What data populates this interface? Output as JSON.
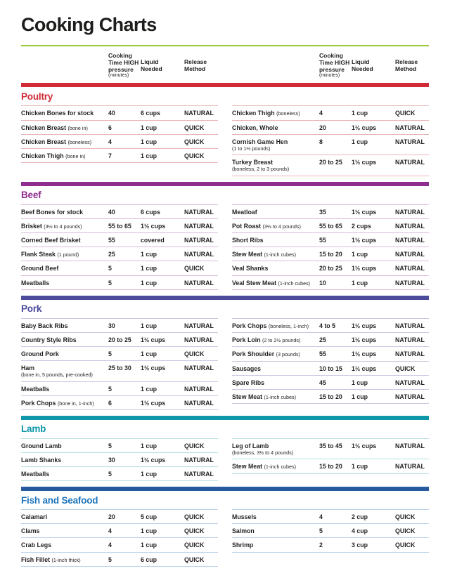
{
  "page": {
    "title": "Cooking Charts"
  },
  "headers": {
    "time": "Cooking Time HIGH pressure",
    "time_note": "(minutes)",
    "liquid": "Liquid Needed",
    "release": "Release Method"
  },
  "colors": {
    "title_rule_green": "#9aca3b",
    "text": "#231f20"
  },
  "sections": [
    {
      "name": "Poultry",
      "heading_color": "#cf2a36",
      "bar_color": "#cf2a36",
      "line_color": "#eab6ba",
      "left_rows": [
        {
          "name": "Chicken Bones for stock",
          "time": "40",
          "liquid": "6 cups",
          "release": "NATURAL"
        },
        {
          "name": "Chicken Breast",
          "sub": "(bone in)",
          "time": "6",
          "liquid": "1 cup",
          "release": "QUICK"
        },
        {
          "name": "Chicken Breast",
          "sub": "(boneless)",
          "time": "4",
          "liquid": "1 cup",
          "release": "QUICK"
        },
        {
          "name": "Chicken Thigh",
          "sub": "(bone in)",
          "time": "7",
          "liquid": "1 cup",
          "release": "QUICK"
        }
      ],
      "right_rows": [
        {
          "name": "Chicken Thigh",
          "sub": "(boneless)",
          "time": "4",
          "liquid": "1 cup",
          "release": "QUICK"
        },
        {
          "name": "Chicken, Whole",
          "time": "20",
          "liquid": "1½ cups",
          "release": "NATURAL"
        },
        {
          "name": "Cornish Game Hen",
          "sub": "(1 to 1½ pounds)",
          "sub_block": true,
          "time": "8",
          "liquid": "1 cup",
          "release": "NATURAL"
        },
        {
          "name": "Turkey Breast",
          "sub": "(boneless, 2 to 3 pounds)",
          "sub_block": true,
          "time": "20 to 25",
          "liquid": "1½ cups",
          "release": "NATURAL"
        }
      ]
    },
    {
      "name": "Beef",
      "heading_color": "#8e2c8f",
      "bar_color": "#8e2c8f",
      "line_color": "#ddb8dc",
      "left_rows": [
        {
          "name": "Beef Bones for stock",
          "time": "40",
          "liquid": "6 cups",
          "release": "NATURAL"
        },
        {
          "name": "Brisket",
          "sub": "(3½ to 4 pounds)",
          "time": "55 to 65",
          "liquid": "1½ cups",
          "release": "NATURAL"
        },
        {
          "name": "Corned Beef Brisket",
          "time": "55",
          "liquid": "covered",
          "release": "NATURAL"
        },
        {
          "name": "Flank Steak",
          "sub": "(1 pound)",
          "time": "25",
          "liquid": "1 cup",
          "release": "NATURAL"
        },
        {
          "name": "Ground Beef",
          "time": "5",
          "liquid": "1 cup",
          "release": "QUICK"
        },
        {
          "name": "Meatballs",
          "time": "5",
          "liquid": "1 cup",
          "release": "NATURAL"
        }
      ],
      "right_rows": [
        {
          "name": "Meatloaf",
          "time": "35",
          "liquid": "1½ cups",
          "release": "NATURAL"
        },
        {
          "name": "Pot Roast",
          "sub": "(3½ to 4 pounds)",
          "time": "55 to 65",
          "liquid": "2 cups",
          "release": "NATURAL"
        },
        {
          "name": "Short Ribs",
          "time": "55",
          "liquid": "1½ cups",
          "release": "NATURAL"
        },
        {
          "name": "Stew Meat",
          "sub": "(1-inch cubes)",
          "time": "15 to 20",
          "liquid": "1 cup",
          "release": "NATURAL"
        },
        {
          "name": "Veal Shanks",
          "time": "20 to 25",
          "liquid": "1½ cups",
          "release": "NATURAL"
        },
        {
          "name": "Veal Stew Meat",
          "sub": "(1-inch cubes)",
          "time": "10",
          "liquid": "1 cup",
          "release": "NATURAL"
        }
      ]
    },
    {
      "name": "Pork",
      "heading_color": "#4b4a9b",
      "bar_color": "#4b4a9b",
      "line_color": "#c9c8e2",
      "left_rows": [
        {
          "name": "Baby Back Ribs",
          "time": "30",
          "liquid": "1 cup",
          "release": "NATURAL"
        },
        {
          "name": "Country Style Ribs",
          "time": "20 to 25",
          "liquid": "1½ cups",
          "release": "NATURAL"
        },
        {
          "name": "Ground Pork",
          "time": "5",
          "liquid": "1 cup",
          "release": "QUICK"
        },
        {
          "name": "Ham",
          "sub": "(bone in, 5 pounds, pre-cooked)",
          "sub_block": true,
          "time": "25 to 30",
          "liquid": "1½ cups",
          "release": "NATURAL"
        },
        {
          "name": "Meatballs",
          "time": "5",
          "liquid": "1 cup",
          "release": "NATURAL"
        },
        {
          "name": "Pork Chops",
          "sub": "(bone in, 1-inch)",
          "time": "6",
          "liquid": "1½ cups",
          "release": "NATURAL"
        }
      ],
      "right_rows": [
        {
          "name": "Pork Chops",
          "sub": "(boneless, 1-inch)",
          "time": "4 to 5",
          "liquid": "1½ cups",
          "release": "NATURAL"
        },
        {
          "name": "Pork Loin",
          "sub": "(2 to 2½ pounds)",
          "time": "25",
          "liquid": "1½ cups",
          "release": "NATURAL"
        },
        {
          "name": "Pork Shoulder",
          "sub": "(3 pounds)",
          "time": "55",
          "liquid": "1½ cups",
          "release": "NATURAL"
        },
        {
          "name": "Sausages",
          "time": "10 to 15",
          "liquid": "1½ cups",
          "release": "QUICK"
        },
        {
          "name": "Spare Ribs",
          "time": "45",
          "liquid": "1 cup",
          "release": "NATURAL"
        },
        {
          "name": "Stew Meat",
          "sub": "(1-inch cubes)",
          "time": "15 to 20",
          "liquid": "1 cup",
          "release": "NATURAL"
        }
      ]
    },
    {
      "name": "Lamb",
      "heading_color": "#0d97a8",
      "bar_color": "#0d97a8",
      "line_color": "#b7dfe4",
      "left_rows": [
        {
          "name": "Ground Lamb",
          "time": "5",
          "liquid": "1 cup",
          "release": "QUICK"
        },
        {
          "name": "Lamb Shanks",
          "time": "30",
          "liquid": "1½ cups",
          "release": "NATURAL"
        },
        {
          "name": "Meatballs",
          "time": "5",
          "liquid": "1 cup",
          "release": "NATURAL"
        }
      ],
      "right_rows": [
        {
          "name": "Leg of Lamb",
          "sub": "(boneless, 3½ to 4 pounds)",
          "sub_block": true,
          "time": "35 to 45",
          "liquid": "1½ cups",
          "release": "NATURAL"
        },
        {
          "name": "Stew Meat",
          "sub": "(1-inch cubes)",
          "time": "15 to 20",
          "liquid": "1 cup",
          "release": "NATURAL"
        }
      ]
    },
    {
      "name": "Fish and Seafood",
      "heading_color": "#1c75bc",
      "bar_color": "#265a9e",
      "line_color": "#bcd2ea",
      "left_rows": [
        {
          "name": "Calamari",
          "time": "20",
          "liquid": "5 cup",
          "release": "QUICK"
        },
        {
          "name": "Clams",
          "time": "4",
          "liquid": "1 cup",
          "release": "QUICK"
        },
        {
          "name": "Crab Legs",
          "time": "4",
          "liquid": "1 cup",
          "release": "QUICK"
        },
        {
          "name": "Fish Fillet",
          "sub": "(1-inch thick)",
          "time": "5",
          "liquid": "6 cup",
          "release": "QUICK"
        }
      ],
      "right_rows": [
        {
          "name": "Mussels",
          "time": "4",
          "liquid": "2 cup",
          "release": "QUICK"
        },
        {
          "name": "Salmon",
          "time": "5",
          "liquid": "4 cup",
          "release": "QUICK"
        },
        {
          "name": "Shrimp",
          "time": "2",
          "liquid": "3 cup",
          "release": "QUICK"
        }
      ]
    }
  ]
}
